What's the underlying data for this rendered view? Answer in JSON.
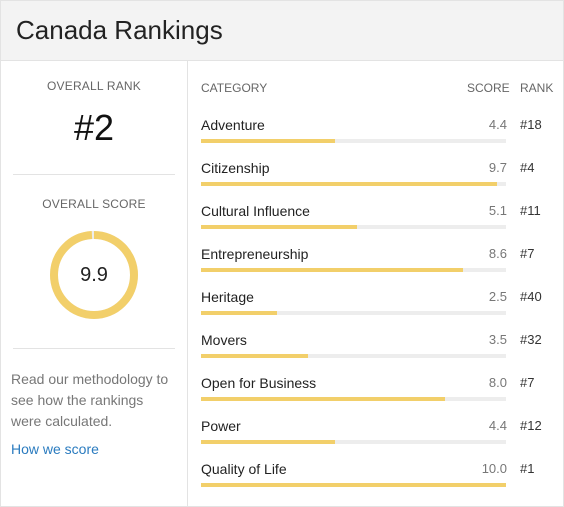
{
  "header": {
    "title": "Canada Rankings"
  },
  "overall": {
    "rank_label": "OVERALL RANK",
    "rank_value": "#2",
    "score_label": "OVERALL SCORE",
    "score_value": "9.9",
    "score_fraction": 0.99,
    "methodology_text": "Read our methodology to see how the rankings were calculated.",
    "link_text": "How we score"
  },
  "table": {
    "headers": {
      "category": "CATEGORY",
      "score": "SCORE",
      "rank": "RANK"
    },
    "rows": [
      {
        "category": "Adventure",
        "score": "4.4",
        "rank": "#18",
        "fraction": 0.44
      },
      {
        "category": "Citizenship",
        "score": "9.7",
        "rank": "#4",
        "fraction": 0.97
      },
      {
        "category": "Cultural Influence",
        "score": "5.1",
        "rank": "#11",
        "fraction": 0.51
      },
      {
        "category": "Entrepreneurship",
        "score": "8.6",
        "rank": "#7",
        "fraction": 0.86
      },
      {
        "category": "Heritage",
        "score": "2.5",
        "rank": "#40",
        "fraction": 0.25
      },
      {
        "category": "Movers",
        "score": "3.5",
        "rank": "#32",
        "fraction": 0.35
      },
      {
        "category": "Open for Business",
        "score": "8.0",
        "rank": "#7",
        "fraction": 0.8
      },
      {
        "category": "Power",
        "score": "4.4",
        "rank": "#12",
        "fraction": 0.44
      },
      {
        "category": "Quality of Life",
        "score": "10.0",
        "rank": "#1",
        "fraction": 1.0
      }
    ]
  },
  "colors": {
    "accent": "#f2cf6a",
    "track": "#ededed",
    "link": "#2a7bbf"
  }
}
